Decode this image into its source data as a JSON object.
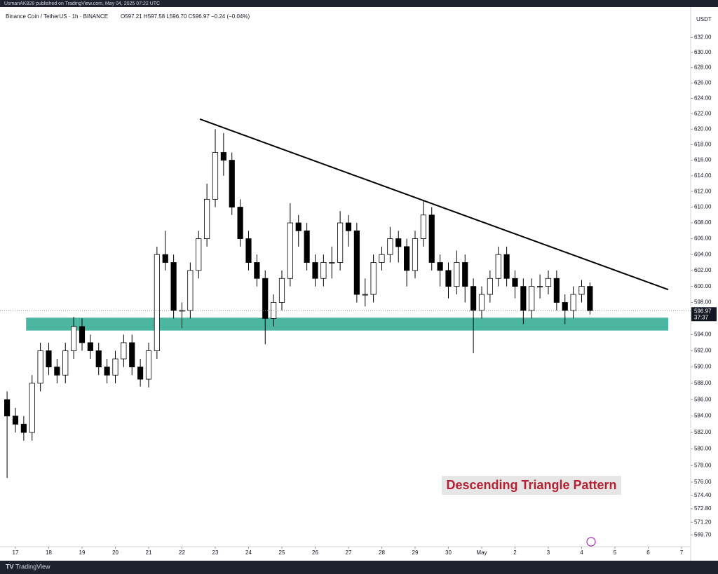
{
  "header": "UsmanAK828 published on TradingView.com, May 04, 2025 07:22 UTC",
  "footer": "TradingView",
  "chart_data": {
    "type": "candlestick",
    "symbol": "Binance Coin / TetherUS · 1h · BINANCE",
    "ohlc_text": "O597.21 H597.58 L596.70 C596.97 −0.24 (−0.04%)",
    "currency": "USDT",
    "last_price": {
      "value": 596.97,
      "label": "596.97"
    },
    "countdown": "37:37",
    "annotation": "Descending Triangle Pattern",
    "log_scale": true,
    "up_color": "#ffffff",
    "down_color": "#000000",
    "xlim": [
      -0.463,
      20.274
    ],
    "ylim": [
      568.3,
      636
    ],
    "xticks": [
      {
        "value": 0,
        "label": "17"
      },
      {
        "value": 1,
        "label": "18"
      },
      {
        "value": 2,
        "label": "19"
      },
      {
        "value": 3,
        "label": "20"
      },
      {
        "value": 4,
        "label": "21"
      },
      {
        "value": 5,
        "label": "22"
      },
      {
        "value": 6,
        "label": "23"
      },
      {
        "value": 7,
        "label": "24"
      },
      {
        "value": 8,
        "label": "25"
      },
      {
        "value": 9,
        "label": "26"
      },
      {
        "value": 10,
        "label": "27"
      },
      {
        "value": 11,
        "label": "28"
      },
      {
        "value": 12,
        "label": "29"
      },
      {
        "value": 13,
        "label": "30"
      },
      {
        "value": 14,
        "label": "May"
      },
      {
        "value": 15,
        "label": "2"
      },
      {
        "value": 16,
        "label": "3"
      },
      {
        "value": 17,
        "label": "4"
      },
      {
        "value": 18,
        "label": "5"
      },
      {
        "value": 19,
        "label": "6"
      },
      {
        "value": 20,
        "label": "7"
      }
    ],
    "yticks": [
      {
        "value": 632,
        "label": "632.00"
      },
      {
        "value": 630,
        "label": "630.00"
      },
      {
        "value": 628,
        "label": "628.00"
      },
      {
        "value": 626,
        "label": "626.00"
      },
      {
        "value": 624,
        "label": "624.00"
      },
      {
        "value": 622,
        "label": "622.00"
      },
      {
        "value": 620,
        "label": "620.00"
      },
      {
        "value": 618,
        "label": "618.00"
      },
      {
        "value": 616,
        "label": "616.00"
      },
      {
        "value": 614,
        "label": "614.00"
      },
      {
        "value": 612,
        "label": "612.00"
      },
      {
        "value": 610,
        "label": "610.00"
      },
      {
        "value": 608,
        "label": "608.00"
      },
      {
        "value": 606,
        "label": "606.00"
      },
      {
        "value": 604,
        "label": "604.00"
      },
      {
        "value": 602,
        "label": "602.00"
      },
      {
        "value": 600,
        "label": "600.00"
      },
      {
        "value": 598,
        "label": "598.00"
      },
      {
        "value": 594,
        "label": "594.00"
      },
      {
        "value": 592,
        "label": "592.00"
      },
      {
        "value": 590,
        "label": "590.00"
      },
      {
        "value": 588,
        "label": "588.00"
      },
      {
        "value": 586,
        "label": "586.00"
      },
      {
        "value": 584,
        "label": "584.00"
      },
      {
        "value": 582,
        "label": "582.00"
      },
      {
        "value": 580,
        "label": "580.00"
      },
      {
        "value": 578,
        "label": "578.00"
      },
      {
        "value": 576,
        "label": "576.00"
      },
      {
        "value": 574.4,
        "label": "574.40"
      },
      {
        "value": 572.8,
        "label": "572.80"
      },
      {
        "value": 571.2,
        "label": "571.20"
      },
      {
        "value": 569.7,
        "label": "569.70"
      }
    ],
    "x": [
      -0.25,
      0,
      0.25,
      0.5,
      0.75,
      1,
      1.25,
      1.5,
      1.75,
      2,
      2.25,
      2.5,
      2.75,
      3,
      3.25,
      3.5,
      3.75,
      4,
      4.25,
      4.5,
      4.75,
      5,
      5.25,
      5.5,
      5.75,
      6,
      6.25,
      6.5,
      6.75,
      7,
      7.25,
      7.5,
      7.75,
      8,
      8.25,
      8.5,
      8.75,
      9,
      9.25,
      9.5,
      9.75,
      10,
      10.25,
      10.5,
      10.75,
      11,
      11.25,
      11.5,
      11.75,
      12,
      12.25,
      12.5,
      12.75,
      13,
      13.25,
      13.5,
      13.75,
      14,
      14.25,
      14.5,
      14.75,
      15,
      15.25,
      15.5,
      15.75,
      16,
      16.25,
      16.5,
      16.75,
      17,
      17.25
    ],
    "open": [
      586,
      584,
      583,
      582,
      588,
      592,
      590,
      589,
      592,
      595,
      593,
      592,
      590,
      589,
      591,
      593,
      590,
      588.5,
      592,
      604,
      603,
      597,
      597,
      602,
      606,
      611,
      617,
      616,
      610,
      606,
      603,
      601,
      596,
      598,
      601,
      608,
      607,
      603,
      601,
      603,
      603,
      608,
      607,
      599,
      599,
      603,
      604,
      606,
      605,
      602,
      606,
      609,
      603,
      602,
      600,
      603,
      600,
      597,
      599,
      601,
      604,
      601,
      600,
      597,
      600,
      600,
      601,
      598,
      597,
      599,
      600
    ],
    "high": [
      587,
      585,
      584,
      589,
      593,
      593,
      591,
      593,
      596.2,
      596,
      594,
      593,
      591,
      592,
      594,
      594,
      591,
      593,
      605,
      607,
      604,
      598,
      603,
      607,
      613,
      620,
      619.5,
      617,
      611,
      607,
      604,
      602,
      599,
      602,
      610.5,
      609,
      608,
      604,
      604,
      605,
      609.5,
      609,
      608,
      601,
      604,
      605,
      607.5,
      607,
      606,
      607,
      610.8,
      610,
      604,
      603,
      604.5,
      604,
      601,
      600,
      602,
      605,
      605,
      602,
      601,
      601,
      601.5,
      602,
      602,
      599,
      600,
      600.8,
      600.5
    ],
    "low": [
      576.5,
      582,
      581,
      581,
      587,
      589,
      588,
      588,
      591,
      592,
      591,
      589,
      588,
      588,
      590,
      589,
      587.6,
      587.5,
      591,
      602,
      596,
      594.8,
      596,
      601,
      605,
      610,
      614,
      609,
      605,
      602,
      600,
      592.8,
      595,
      597,
      600,
      605,
      602,
      600,
      600,
      601,
      602,
      605,
      598,
      597.5,
      598,
      602,
      603,
      603,
      600,
      601,
      605,
      602,
      600,
      598.5,
      599,
      598,
      591.7,
      596,
      598,
      600,
      600,
      598.5,
      595.3,
      596,
      598.5,
      599,
      597,
      595.3,
      596,
      598,
      596.5
    ],
    "close": [
      584,
      583,
      582,
      588,
      592,
      590,
      589,
      592,
      595,
      593,
      592,
      590,
      589,
      591,
      593,
      590,
      588.5,
      592,
      604,
      603,
      597,
      597,
      602,
      606,
      611,
      617,
      616,
      610,
      606,
      603,
      601,
      596,
      598,
      601,
      608,
      607,
      603,
      601,
      603,
      603,
      608,
      607,
      599,
      599,
      603,
      604,
      606,
      605,
      602,
      606,
      609,
      603,
      602,
      600,
      603,
      600,
      597,
      599,
      601,
      604,
      601,
      600,
      597,
      600,
      600,
      601,
      598,
      597,
      599,
      600,
      596.97
    ],
    "trendline": {
      "x": [
        5.54,
        19.6
      ],
      "y": [
        621.3,
        599.6
      ],
      "color": "#000000"
    },
    "zone": {
      "x": [
        0.32,
        19.6
      ],
      "y": [
        594.5,
        596.1
      ],
      "color": "#4db6a0"
    }
  }
}
